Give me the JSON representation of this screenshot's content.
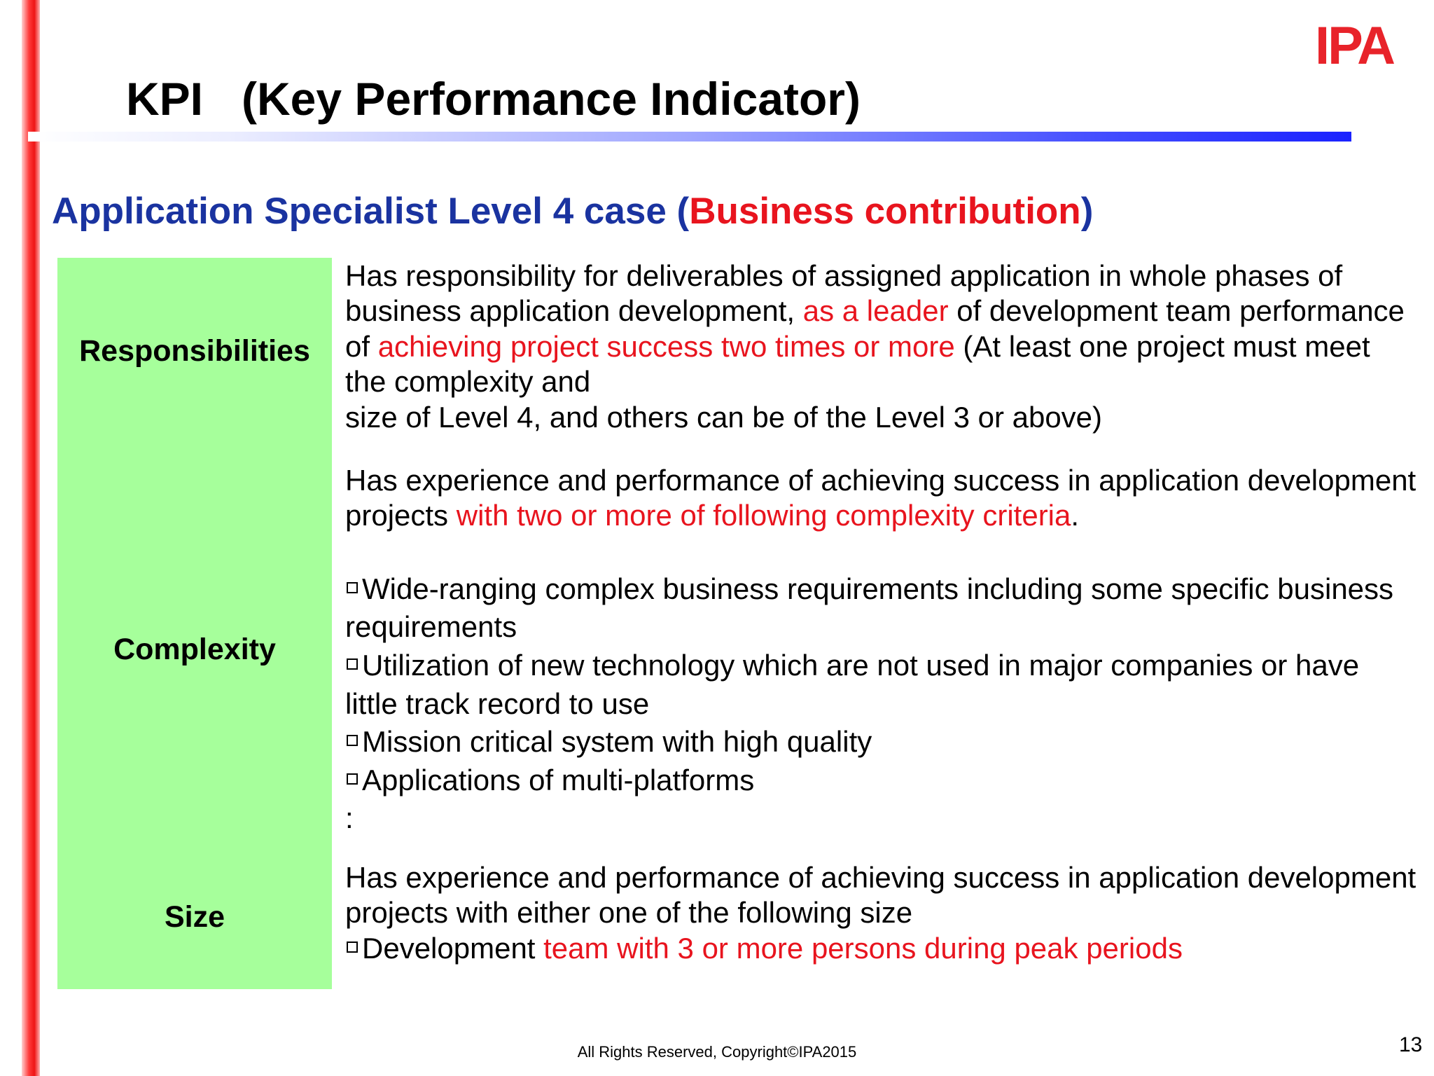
{
  "logo_text": "IPA",
  "title": "KPI   (Key Performance Indicator)",
  "subtitle": {
    "main": "Application Specialist Level 4 case",
    "paren_open": "(",
    "accent": "Business contribution",
    "paren_close": ")"
  },
  "rows": {
    "responsibilities": {
      "label": "Responsibilities",
      "text": [
        "Has responsibility for deliverables of assigned application in whole phases of business application development, ",
        "as a leader",
        " of development team performance of ",
        "achieving project success two times or more",
        " (At least one project must meet the complexity and",
        "size of Level 4, and others can be of the Level 3 or above)"
      ]
    },
    "complexity": {
      "label": "Complexity",
      "intro": [
        "Has experience and performance of achieving success in application development projects ",
        "with two or more of following complexity criteria",
        "."
      ],
      "items": [
        "Wide-ranging complex business requirements including some specific business requirements",
        "Utilization of new technology which are not used in major companies or have little track record to use",
        "Mission critical system with high quality",
        "Applications of multi-platforms"
      ],
      "ellipsis": ":"
    },
    "size": {
      "label": "Size",
      "intro": "Has experience and performance of achieving success in application development projects with either one of the following size",
      "item_prefix": "Development ",
      "item_highlight": "team with 3 or more persons during peak periods"
    }
  },
  "footer": "All Rights Reserved, Copyright©IPA2015",
  "page_number": "13",
  "colors": {
    "accent_red": "#e8141e",
    "subtitle_blue": "#1a33a0",
    "label_green": "#a6ff9b",
    "logo_red": "#e8232a"
  }
}
